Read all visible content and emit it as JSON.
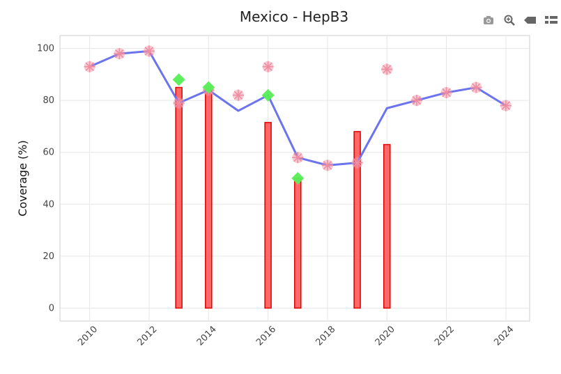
{
  "chart_data": {
    "type": "bar",
    "title": "Mexico - HepB3",
    "xlabel": "",
    "ylabel": "Coverage (%)",
    "xlim": [
      2009,
      2024.8
    ],
    "ylim": [
      -5,
      105
    ],
    "x_ticks": [
      2010,
      2012,
      2014,
      2016,
      2018,
      2020,
      2022,
      2024
    ],
    "y_ticks": [
      0,
      20,
      40,
      60,
      80,
      100
    ],
    "grid": true,
    "legend": "none",
    "series": [
      {
        "kind": "bar",
        "color": "#ff4d4d",
        "stroke": "#e00000",
        "x": [
          2013,
          2014,
          2016,
          2017,
          2019,
          2020
        ],
        "values": [
          85,
          84,
          71.5,
          50,
          68,
          63
        ]
      },
      {
        "kind": "line",
        "color": "#6b74ee",
        "x": [
          2010,
          2011,
          2012,
          2013,
          2014,
          2015,
          2016,
          2017,
          2018,
          2019,
          2020,
          2021,
          2022,
          2023,
          2024
        ],
        "values": [
          93,
          98,
          99,
          79,
          84,
          76,
          82,
          58,
          55,
          56,
          77,
          80,
          83,
          85,
          78
        ]
      },
      {
        "kind": "scatter-asterisk",
        "color": "#f08ca0",
        "x": [
          2010,
          2011,
          2012,
          2013,
          2014,
          2015,
          2016,
          2017,
          2018,
          2019,
          2020,
          2021,
          2022,
          2023,
          2024
        ],
        "values": [
          93,
          98,
          99,
          79,
          84,
          82,
          93,
          58,
          55,
          56,
          92,
          80,
          83,
          85,
          78
        ]
      },
      {
        "kind": "scatter-diamond",
        "color": "#55ee55",
        "x": [
          2013,
          2014,
          2016,
          2017
        ],
        "values": [
          88,
          85,
          82,
          50
        ]
      }
    ]
  },
  "modebar": {
    "icons": [
      "camera-icon",
      "zoom-icon",
      "pan-icon",
      "menu-icon"
    ],
    "color": "#777777"
  }
}
